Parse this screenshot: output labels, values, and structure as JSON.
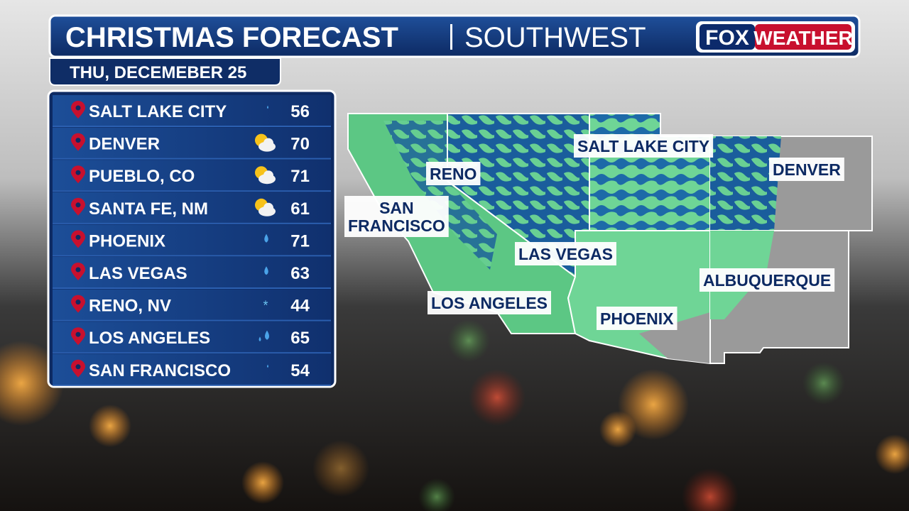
{
  "header": {
    "title": "CHRISTMAS FORECAST",
    "region": "SOUTHWEST",
    "logo": {
      "fox": "FOX",
      "weather": "WEATHER"
    }
  },
  "date": "THU, DECEMEBER 25",
  "table": {
    "rows": [
      [
        "SALT LAKE CITY",
        56
      ],
      [
        "DENVER",
        70
      ],
      [
        "PUEBLO, CO",
        71
      ],
      [
        "SANTA FE, NM",
        61
      ],
      [
        "PHOENIX",
        71
      ],
      [
        "LAS VEGAS",
        63
      ],
      [
        "RENO, NV",
        44
      ],
      [
        "LOS ANGELES",
        65
      ],
      [
        "SAN FRANCISCO",
        54
      ]
    ]
  },
  "map": {
    "labels": [
      [
        "SALT LAKE CITY"
      ],
      [
        "RENO"
      ],
      [
        "DENVER"
      ],
      [
        "SAN",
        "FRANCISCO"
      ],
      [
        "LAS VEGAS"
      ],
      [
        "ALBUQUERQUE"
      ],
      [
        "LOS ANGELES"
      ],
      [
        "PHOENIX"
      ]
    ]
  }
}
